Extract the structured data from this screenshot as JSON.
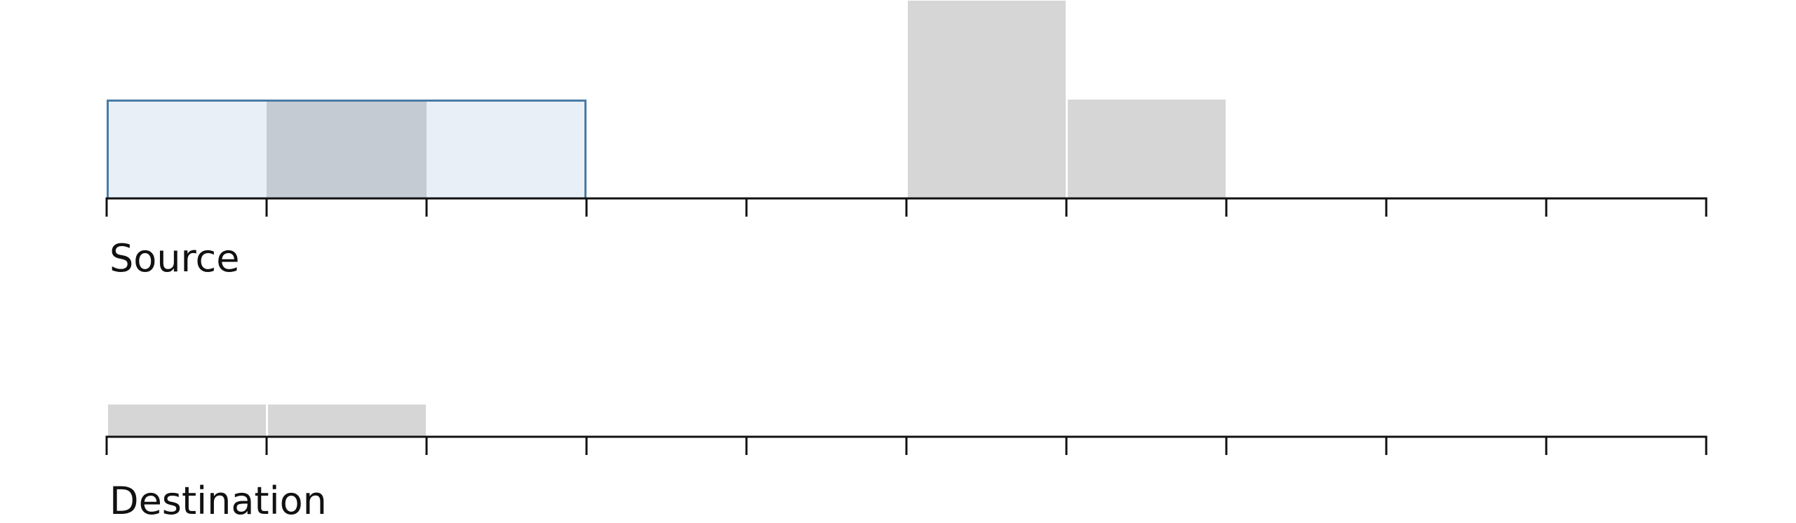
{
  "colors": {
    "background": "#ffffff",
    "axis": "#111111",
    "block": "#d6d6d6",
    "selection_fill": "#e8eff7",
    "selection_border": "#4a7ba6",
    "overlap_fill": "#c4cbd3",
    "label": "#111111"
  },
  "tracks": [
    {
      "id": "source",
      "label": "Source",
      "slot_count": 10,
      "blocks": [
        {
          "start": 5,
          "end": 6,
          "height": 2
        },
        {
          "start": 6,
          "end": 7,
          "height": 1
        }
      ],
      "selection": {
        "start": 0,
        "end": 3,
        "height": 1
      },
      "overlap": {
        "start": 1,
        "end": 2,
        "height": 1
      }
    },
    {
      "id": "destination",
      "label": "Destination",
      "slot_count": 10,
      "blocks": [
        {
          "start": 0,
          "end": 1,
          "height": 1
        },
        {
          "start": 1,
          "end": 2,
          "height": 1
        }
      ]
    }
  ]
}
